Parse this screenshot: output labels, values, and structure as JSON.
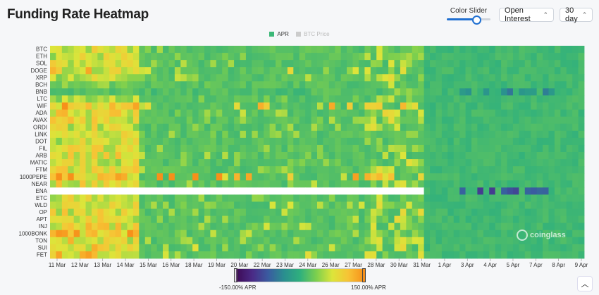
{
  "title": "Funding Rate Heatmap",
  "controls": {
    "slider_label": "Color Slider",
    "slider_value": 0.67,
    "metric": "Open Interest",
    "range": "30 day"
  },
  "legend": [
    {
      "label": "APR",
      "color": "#3cb878"
    },
    {
      "label": "BTC Price",
      "color": "#cccccc"
    }
  ],
  "colorbar": {
    "min_label": "-150.00% APR",
    "max_label": "150.00% APR"
  },
  "watermark": "coinglass",
  "chart_data": {
    "type": "heatmap",
    "rows": [
      "BTC",
      "ETH",
      "SOL",
      "DOGE",
      "XRP",
      "BCH",
      "BNB",
      "LTC",
      "WIF",
      "ADA",
      "AVAX",
      "ORDI",
      "LINK",
      "DOT",
      "FIL",
      "ARB",
      "MATIC",
      "FTM",
      "1000PEPE",
      "NEAR",
      "ENA",
      "ETC",
      "WLD",
      "OP",
      "APT",
      "INJ",
      "1000BONK",
      "TON",
      "SUI",
      "FET"
    ],
    "x_ticks": [
      "11 Mar",
      "12 Mar",
      "13 Mar",
      "14 Mar",
      "15 Mar",
      "16 Mar",
      "18 Mar",
      "19 Mar",
      "20 Mar",
      "22 Mar",
      "23 Mar",
      "24 Mar",
      "26 Mar",
      "27 Mar",
      "28 Mar",
      "30 Mar",
      "31 Mar",
      "1 Apr",
      "3 Apr",
      "4 Apr",
      "5 Apr",
      "7 Apr",
      "8 Apr",
      "9 Apr"
    ],
    "colorscale_min": -150,
    "colorscale_max": 150,
    "colorscale": [
      "#3d0a55",
      "#4a2a86",
      "#3a5ba0",
      "#2a8f8f",
      "#2fb07d",
      "#7ccf4e",
      "#dce53a",
      "#f7c335",
      "#f7901a"
    ],
    "base_value": 10,
    "row_patterns": [
      {
        "row": "BTC",
        "early": 80,
        "mid": 25,
        "late": 5
      },
      {
        "row": "ETH",
        "early": 75,
        "mid": 20,
        "late": 5
      },
      {
        "row": "SOL",
        "early": 85,
        "mid": 30,
        "late": 8
      },
      {
        "row": "DOGE",
        "early": 95,
        "mid": 45,
        "late": 10
      },
      {
        "row": "XRP",
        "early": 70,
        "mid": 30,
        "late": 5
      },
      {
        "row": "BCH",
        "early": 40,
        "mid": 15,
        "late": 0
      },
      {
        "row": "BNB",
        "early": 20,
        "mid": 5,
        "late": -40
      },
      {
        "row": "LTC",
        "early": 60,
        "mid": 20,
        "late": 5
      },
      {
        "row": "WIF",
        "early": 110,
        "mid": 60,
        "late": 10
      },
      {
        "row": "ADA",
        "early": 90,
        "mid": 35,
        "late": 8
      },
      {
        "row": "AVAX",
        "early": 85,
        "mid": 30,
        "late": 5
      },
      {
        "row": "ORDI",
        "early": 80,
        "mid": 25,
        "late": 5
      },
      {
        "row": "LINK",
        "early": 75,
        "mid": 25,
        "late": 5
      },
      {
        "row": "DOT",
        "early": 70,
        "mid": 20,
        "late": 5
      },
      {
        "row": "FIL",
        "early": 80,
        "mid": 25,
        "late": 5
      },
      {
        "row": "ARB",
        "early": 85,
        "mid": 30,
        "late": 8
      },
      {
        "row": "MATIC",
        "early": 75,
        "mid": 25,
        "late": 5
      },
      {
        "row": "FTM",
        "early": 85,
        "mid": 30,
        "late": 10
      },
      {
        "row": "1000PEPE",
        "early": 120,
        "mid": 80,
        "late": 15
      },
      {
        "row": "NEAR",
        "early": 90,
        "mid": 30,
        "late": 10
      },
      {
        "row": "ENA",
        "early": null,
        "mid": null,
        "late": -80
      },
      {
        "row": "ETC",
        "early": 75,
        "mid": 25,
        "late": 5
      },
      {
        "row": "WLD",
        "early": 90,
        "mid": 35,
        "late": 10
      },
      {
        "row": "OP",
        "early": 85,
        "mid": 30,
        "late": 8
      },
      {
        "row": "APT",
        "early": 80,
        "mid": 30,
        "late": 8
      },
      {
        "row": "INJ",
        "early": 95,
        "mid": 35,
        "late": 10
      },
      {
        "row": "1000BONK",
        "early": 110,
        "mid": 40,
        "late": 10
      },
      {
        "row": "TON",
        "early": 90,
        "mid": 30,
        "late": 8
      },
      {
        "row": "SUI",
        "early": 95,
        "mid": 35,
        "late": 10
      },
      {
        "row": "FET",
        "early": 100,
        "mid": 40,
        "late": 10
      }
    ]
  }
}
